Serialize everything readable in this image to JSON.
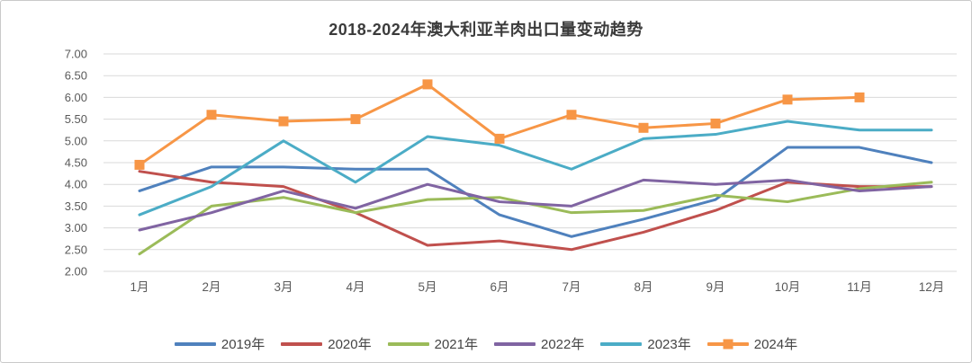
{
  "chart_data": {
    "type": "line",
    "title": "2018-2024年澳大利亚羊肉出口量变动趋势",
    "categories": [
      "1月",
      "2月",
      "3月",
      "4月",
      "5月",
      "6月",
      "7月",
      "8月",
      "9月",
      "10月",
      "11月",
      "12月"
    ],
    "series": [
      {
        "name": "2019年",
        "color": "#4F81BD",
        "marker": "none",
        "values": [
          3.85,
          4.4,
          4.4,
          4.35,
          4.35,
          3.3,
          2.8,
          3.2,
          3.65,
          4.85,
          4.85,
          4.5
        ]
      },
      {
        "name": "2020年",
        "color": "#C0504D",
        "marker": "none",
        "values": [
          4.3,
          4.05,
          3.95,
          3.35,
          2.6,
          2.7,
          2.5,
          2.9,
          3.4,
          4.05,
          3.95,
          3.95
        ]
      },
      {
        "name": "2021年",
        "color": "#9BBB59",
        "marker": "none",
        "values": [
          2.4,
          3.5,
          3.7,
          3.35,
          3.65,
          3.7,
          3.35,
          3.4,
          3.75,
          3.6,
          3.9,
          4.05
        ]
      },
      {
        "name": "2022年",
        "color": "#8064A2",
        "marker": "none",
        "values": [
          2.95,
          3.35,
          3.85,
          3.45,
          4.0,
          3.6,
          3.5,
          4.1,
          4.0,
          4.1,
          3.85,
          3.95
        ]
      },
      {
        "name": "2023年",
        "color": "#4BACC6",
        "marker": "none",
        "values": [
          3.3,
          3.95,
          5.0,
          4.05,
          5.1,
          4.9,
          4.35,
          5.05,
          5.15,
          5.45,
          5.25,
          5.25
        ]
      },
      {
        "name": "2024年",
        "color": "#F79646",
        "marker": "square",
        "values": [
          4.45,
          5.6,
          5.45,
          5.5,
          6.3,
          5.05,
          5.6,
          5.3,
          5.4,
          5.95,
          6.0,
          null
        ]
      }
    ],
    "y_axis": {
      "min": 2.0,
      "max": 7.0,
      "step": 0.5,
      "tick_decimals": 2
    },
    "x_axis": {
      "label": ""
    },
    "grid": true,
    "legend_position": "bottom",
    "colors": {
      "title_text": "#3b3b3b",
      "axis_text": "#5a5a5a",
      "legend_text": "#444444",
      "gridline": "#d9d9d9",
      "background": "#ffffff"
    }
  }
}
